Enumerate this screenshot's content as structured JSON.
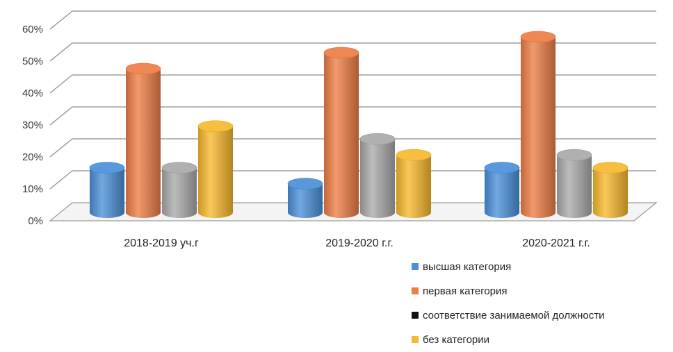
{
  "chart_data": {
    "type": "bar",
    "style": "3d-cylinder",
    "categories": [
      "2018-2019 уч.г",
      "2019-2020 г.г.",
      "2020-2021 г.г."
    ],
    "series": [
      {
        "name": "высшая категория",
        "color": "#4a90d9",
        "values": [
          14,
          9,
          14
        ]
      },
      {
        "name": "первая категория",
        "color": "#ee7d45",
        "values": [
          45,
          50,
          55
        ]
      },
      {
        "name": "соответствие занимаемой должности",
        "color": "#a9a9ab",
        "legend_color": "#111111",
        "values": [
          14,
          23,
          18
        ]
      },
      {
        "name": "без категории",
        "color": "#f7b92d",
        "values": [
          27,
          18,
          14
        ]
      }
    ],
    "yticks": [
      "0%",
      "10%",
      "20%",
      "30%",
      "40%",
      "50%",
      "60%"
    ],
    "ylim": [
      0,
      60
    ],
    "unit": "%",
    "grid": true,
    "legend_position": "bottom-right"
  }
}
